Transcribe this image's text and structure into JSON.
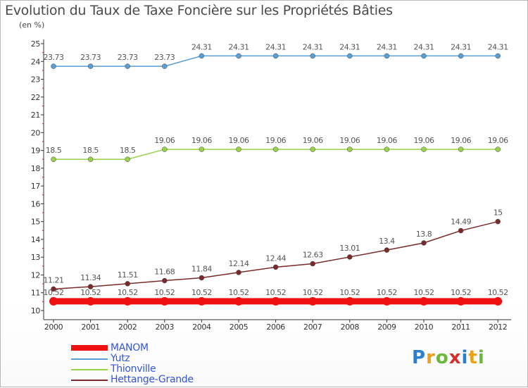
{
  "title": "Evolution du Taux de Taxe Foncière sur les Propriétés Bâties",
  "unit": "(en %)",
  "logo": "Proxiti",
  "colors": {
    "MANOM": "#ee1111",
    "Yutz": "#5a9fd4",
    "Thionville": "#99d24a",
    "Hettange-Grande": "#7a2a2a"
  },
  "chart_data": {
    "type": "line",
    "title": "Evolution du Taux de Taxe Foncière sur les Propriétés Bâties",
    "ylabel": "(en %)",
    "xlabel": "",
    "ylim": [
      10,
      25
    ],
    "yticks": [
      "10",
      "11",
      "12",
      "13",
      "14",
      "15",
      "16",
      "17",
      "18",
      "19",
      "20",
      "21",
      "22",
      "23",
      "24",
      "25"
    ],
    "categories": [
      "2000",
      "2001",
      "2002",
      "2003",
      "2004",
      "2005",
      "2006",
      "2007",
      "2008",
      "2009",
      "2010",
      "2011",
      "2012"
    ],
    "grid": false,
    "legend": "bottom-left",
    "series": [
      {
        "name": "MANOM",
        "values": [
          10.52,
          10.52,
          10.52,
          10.52,
          10.52,
          10.52,
          10.52,
          10.52,
          10.52,
          10.52,
          10.52,
          10.52,
          10.52
        ]
      },
      {
        "name": "Yutz",
        "values": [
          23.73,
          23.73,
          23.73,
          23.73,
          24.31,
          24.31,
          24.31,
          24.31,
          24.31,
          24.31,
          24.31,
          24.31,
          24.31
        ]
      },
      {
        "name": "Thionville",
        "values": [
          18.5,
          18.5,
          18.5,
          19.06,
          19.06,
          19.06,
          19.06,
          19.06,
          19.06,
          19.06,
          19.06,
          19.06,
          19.06
        ]
      },
      {
        "name": "Hettange-Grande",
        "values": [
          11.21,
          11.34,
          11.51,
          11.68,
          11.84,
          12.14,
          12.44,
          12.63,
          13.01,
          13.4,
          13.8,
          14.49,
          15
        ]
      }
    ]
  }
}
